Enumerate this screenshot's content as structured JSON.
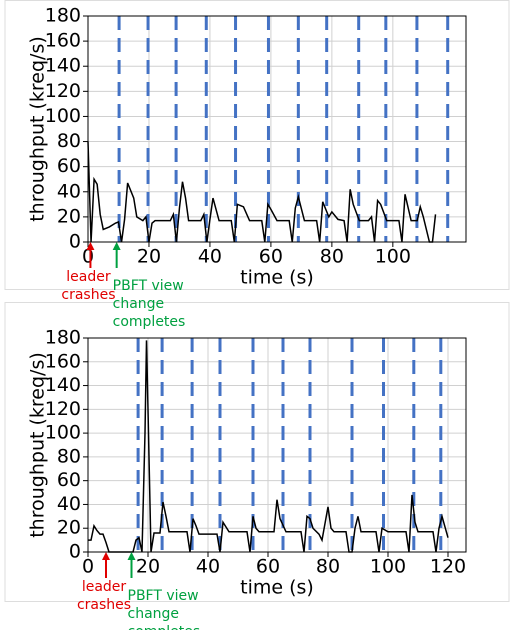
{
  "chart_data": [
    {
      "type": "line",
      "xlabel": "time (s)",
      "ylabel": "throughput (kreq/s)",
      "xlim": [
        0,
        124
      ],
      "ylim": [
        0,
        180
      ],
      "xticks": [
        0,
        20,
        40,
        60,
        80,
        100
      ],
      "yticks": [
        0,
        20,
        40,
        60,
        80,
        100,
        120,
        140,
        160,
        180
      ],
      "grid": true,
      "color": "#000000",
      "vline_color": "#4472c4",
      "x": [
        0,
        1,
        2,
        3,
        4,
        5,
        7,
        9,
        10,
        11,
        12,
        13,
        15,
        16,
        18,
        19,
        20,
        21,
        22,
        27,
        28,
        29,
        30,
        31,
        32,
        33,
        37,
        38,
        39,
        40,
        41,
        43,
        47,
        48,
        49,
        51,
        53,
        57,
        58,
        59,
        60,
        62,
        66,
        67,
        68,
        69,
        71,
        75,
        76,
        77,
        79,
        80,
        82,
        84,
        85,
        86,
        87,
        89,
        92,
        93,
        94,
        95,
        96,
        98,
        102,
        103,
        104,
        106,
        108,
        109,
        110,
        112,
        113,
        114
      ],
      "values": [
        80,
        0,
        50,
        46,
        22,
        10,
        12,
        15,
        16,
        0,
        18,
        47,
        35,
        20,
        17,
        20,
        0,
        15,
        17,
        17,
        22,
        0,
        27,
        48,
        35,
        17,
        17,
        22,
        0,
        18,
        35,
        17,
        17,
        0,
        30,
        28,
        17,
        17,
        0,
        30,
        26,
        17,
        17,
        0,
        27,
        36,
        17,
        17,
        0,
        32,
        20,
        24,
        18,
        17,
        0,
        42,
        30,
        17,
        17,
        20,
        0,
        33,
        30,
        17,
        17,
        0,
        38,
        17,
        17,
        28,
        20,
        0,
        0,
        22
      ],
      "vlines": [
        10.2,
        19.7,
        28.9,
        38.8,
        48.4,
        59.2,
        69,
        78.3,
        88.8,
        97.7,
        107.9,
        118
      ],
      "annotations": [
        {
          "lines": [
            "leader",
            "crashes"
          ],
          "x": 0.8,
          "color": "#e00000"
        },
        {
          "lines": [
            "PBFT view",
            "change",
            "completes"
          ],
          "x": 9.4,
          "color": "#00a040"
        }
      ]
    },
    {
      "type": "line",
      "xlabel": "time (s)",
      "ylabel": "throughput (kreq/s)",
      "xlim": [
        0,
        126
      ],
      "ylim": [
        0,
        180
      ],
      "xticks": [
        0,
        20,
        40,
        60,
        80,
        100,
        120
      ],
      "yticks": [
        0,
        20,
        40,
        60,
        80,
        100,
        120,
        140,
        160,
        180
      ],
      "grid": true,
      "color": "#000000",
      "vline_color": "#4472c4",
      "x": [
        0,
        1,
        2,
        3,
        4,
        5,
        6,
        7,
        15,
        16,
        17,
        18,
        19,
        19.5,
        20,
        21,
        22,
        24,
        25,
        26,
        27,
        33,
        34,
        35,
        36,
        37,
        43,
        44,
        45,
        47,
        53,
        54,
        55,
        56,
        57,
        62,
        63,
        64,
        66,
        71,
        72,
        73,
        74,
        75,
        77,
        78,
        80,
        81,
        82,
        86,
        87,
        88,
        89,
        90,
        91,
        96,
        97,
        98,
        100,
        106,
        107,
        108,
        109,
        110,
        115,
        116,
        117,
        118,
        120
      ],
      "values": [
        10,
        10,
        22,
        18,
        15,
        15,
        8,
        0,
        0,
        10,
        12,
        0,
        100,
        178,
        120,
        0,
        16,
        16,
        42,
        30,
        17,
        17,
        0,
        28,
        22,
        15,
        15,
        0,
        25,
        17,
        17,
        0,
        30,
        20,
        17,
        17,
        44,
        28,
        17,
        17,
        0,
        30,
        28,
        20,
        15,
        10,
        38,
        20,
        17,
        17,
        0,
        0,
        20,
        30,
        17,
        17,
        0,
        20,
        17,
        17,
        0,
        48,
        25,
        17,
        17,
        0,
        20,
        30,
        12
      ],
      "vlines": [
        16.7,
        24.7,
        34.7,
        44,
        55,
        65,
        74,
        88,
        98.5,
        108.6,
        117.6
      ],
      "annotations": [
        {
          "lines": [
            "leader",
            "crashes"
          ],
          "x": 6,
          "color": "#e00000"
        },
        {
          "lines": [
            "PBFT view",
            "change",
            "completes"
          ],
          "x": 14.5,
          "color": "#00a040"
        }
      ]
    }
  ]
}
